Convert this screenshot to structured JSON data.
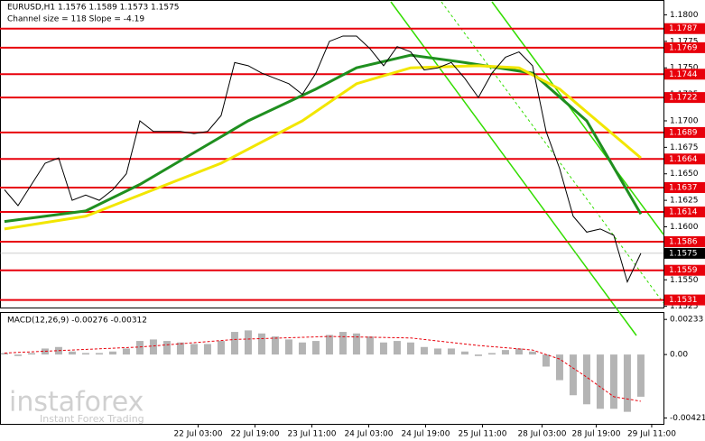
{
  "chart_data": {
    "type": "line",
    "title": "EURUSD,H1  1.1576 1.1589 1.1573 1.1575",
    "subtitle": "Channel size = 118 Slope = -4.19",
    "watermark": "instaforex",
    "watermark_tagline": "Instant Forex Trading",
    "xlim": [
      -0.33,
      48.67
    ],
    "xticks": [
      {
        "value": 14.3,
        "label": "22 Jul 03:00"
      },
      {
        "value": 18.5,
        "label": "22 Jul 19:00"
      },
      {
        "value": 22.7,
        "label": "23 Jul 11:00"
      },
      {
        "value": 26.9,
        "label": "24 Jul 03:00"
      },
      {
        "value": 31.1,
        "label": "24 Jul 19:00"
      },
      {
        "value": 35.3,
        "label": "25 Jul 11:00"
      },
      {
        "value": 39.7,
        "label": "28 Jul 03:00"
      },
      {
        "value": 43.7,
        "label": "28 Jul 19:00"
      },
      {
        "value": 47.8,
        "label": "29 Jul 11:00"
      }
    ],
    "ylim": [
      1.1523,
      1.1814
    ],
    "yticks": [
      {
        "value": 1.18,
        "label": "1.1800"
      },
      1.1775,
      {
        "value": 1.175,
        "label": "1.1750"
      },
      1.1725,
      {
        "value": 1.17,
        "label": "1.1700"
      },
      1.1675,
      {
        "value": 1.165,
        "label": "1.1650"
      },
      1.1625,
      {
        "value": 1.16,
        "label": "1.1600"
      },
      {
        "value": 1.155,
        "label": "1.1550"
      },
      1.1525
    ],
    "levels": [
      1.1787,
      1.1769,
      1.1744,
      1.1722,
      1.1689,
      1.1664,
      1.1637,
      1.1614,
      1.1586,
      1.1559,
      1.1531
    ],
    "level_color": "#e8000b",
    "last_price": 1.1575,
    "series": [
      {
        "color": "#000000",
        "values": [
          1.1635,
          1.162,
          1.164,
          1.166,
          1.1665,
          1.1625,
          1.163,
          1.1625,
          1.1635,
          1.165,
          1.17,
          1.169,
          1.169,
          1.169,
          1.1688,
          1.169,
          1.1705,
          1.1755,
          1.1752,
          1.1745,
          1.174,
          1.1735,
          1.1725,
          1.1745,
          1.1775,
          1.178,
          1.178,
          1.1768,
          1.1752,
          1.177,
          1.1765,
          1.1748,
          1.175,
          1.1755,
          1.174,
          1.1722,
          1.1745,
          1.176,
          1.1765,
          1.1752,
          1.169,
          1.1655,
          1.161,
          1.1595,
          1.1598,
          1.1592,
          1.1548,
          1.1575
        ]
      },
      {
        "color": "#1f8f1f",
        "x": [
          0,
          6,
          10,
          14,
          18,
          23,
          26,
          30,
          34,
          39,
          43,
          47
        ],
        "values": [
          1.1605,
          1.1615,
          1.164,
          1.167,
          1.17,
          1.173,
          1.175,
          1.1762,
          1.1755,
          1.1745,
          1.17,
          1.1612
        ]
      },
      {
        "color": "#f2e600",
        "x": [
          0,
          6,
          10,
          16,
          22,
          26,
          30,
          35,
          38,
          41,
          47
        ],
        "values": [
          1.1598,
          1.161,
          1.163,
          1.166,
          1.17,
          1.1735,
          1.175,
          1.1752,
          1.175,
          1.173,
          1.1665
        ]
      }
    ],
    "macd": {
      "label": "MACD(12,26,9) -0.00276 -0.00312",
      "ylim": [
        -0.0046,
        0.0027
      ],
      "yticks": [
        0.00233,
        {
          "value": 0,
          "label": "0.00"
        },
        -0.00421
      ],
      "color": "#b4b4b4",
      "values": [
        0.0001,
        -0.0001,
        0.0001,
        0.0004,
        0.0005,
        0.0002,
        0.0001,
        0.0001,
        0.0002,
        0.0004,
        0.0009,
        0.001,
        0.0009,
        0.0008,
        0.0007,
        0.0007,
        0.0009,
        0.0015,
        0.0016,
        0.0014,
        0.0012,
        0.001,
        0.0008,
        0.0009,
        0.0013,
        0.0015,
        0.0014,
        0.0012,
        0.0008,
        0.0009,
        0.0008,
        0.0005,
        0.0004,
        0.0004,
        0.0002,
        -0.0001,
        0.0001,
        0.0003,
        0.0004,
        0.0002,
        -0.0008,
        -0.0017,
        -0.0027,
        -0.0033,
        -0.0036,
        -0.0036,
        -0.0038,
        -0.0028
      ],
      "signal": {
        "color": "#e8000b",
        "x": [
          0,
          10,
          17,
          24,
          30,
          35,
          39,
          41,
          43,
          45,
          47
        ],
        "values": [
          0.0001,
          0.0005,
          0.001,
          0.0012,
          0.0011,
          0.0006,
          0.0003,
          -0.0003,
          -0.0015,
          -0.0028,
          -0.0031
        ]
      }
    }
  }
}
